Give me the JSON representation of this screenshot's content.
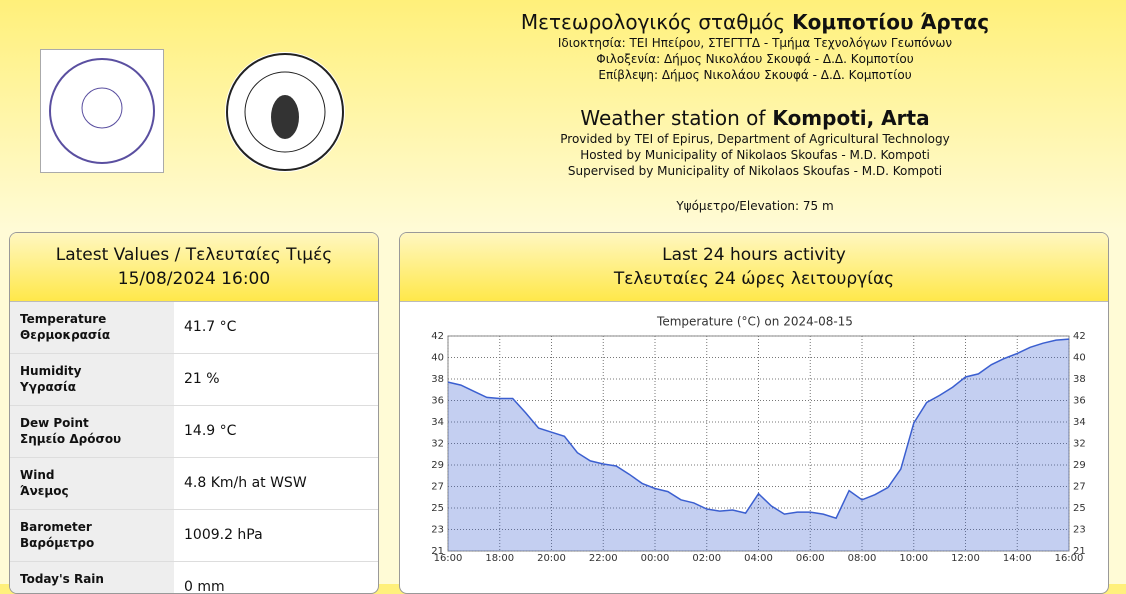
{
  "header": {
    "title_gr_prefix": "Μετεωρολογικός σταθμός",
    "title_gr_bold": "Κομποτίου Άρτας",
    "lines_gr": [
      "Ιδιοκτησία: ΤΕΙ Ηπείρου, ΣΤΕΓΤΤΔ - Τμήμα Τεχνολόγων Γεωπόνων",
      "Φιλοξενία: Δήμος Νικολάου Σκουφά - Δ.Δ. Κομποτίου",
      "Επίβλεψη: Δήμος Νικολάου Σκουφά - Δ.Δ. Κομποτίου"
    ],
    "title_en_prefix": "Weather station of",
    "title_en_bold": "Kompoti, Arta",
    "lines_en": [
      "Provided by TEI of Epirus, Department of Agricultural Technology",
      "Hosted by Municipality of Nikolaos Skoufas - M.D. Kompoti",
      "Supervised by Municipality of Nikolaos Skoufas - M.D. Kompoti"
    ],
    "elevation": "Υψόμετρο/Elevation: 75 m"
  },
  "latest": {
    "title": "Latest Values / Τελευταίες Τιμές",
    "datetime": "15/08/2024 16:00",
    "rows": [
      {
        "label_en": "Temperature",
        "label_gr": "Θερμοκρασία",
        "value": "41.7 °C"
      },
      {
        "label_en": "Humidity",
        "label_gr": "Υγρασία",
        "value": "21 %"
      },
      {
        "label_en": "Dew Point",
        "label_gr": "Σημείο Δρόσου",
        "value": "14.9 °C"
      },
      {
        "label_en": "Wind",
        "label_gr": "Άνεμος",
        "value": "4.8 Km/h at WSW"
      },
      {
        "label_en": "Barometer",
        "label_gr": "Βαρόμετρο",
        "value": "1009.2 hPa"
      },
      {
        "label_en": "Today's Rain",
        "value": "0 mm"
      }
    ]
  },
  "activity": {
    "title_en": "Last 24 hours activity",
    "title_gr": "Τελευταίες 24 ώρες λειτουργίας",
    "chart": {
      "type": "line",
      "title": "Temperature (°C) on 2024-08-15",
      "color": "#3b5fd0",
      "grid": true,
      "x": [
        0,
        0.5,
        1,
        1.5,
        2,
        2.5,
        3,
        3.5,
        4,
        4.5,
        5,
        5.5,
        6,
        6.5,
        7,
        7.5,
        8,
        8.5,
        9,
        9.5,
        10,
        10.5,
        11,
        11.5,
        12,
        12.5,
        13,
        13.5,
        14,
        14.5,
        15,
        15.5,
        16,
        16.5,
        17,
        17.5,
        18,
        18.5,
        19,
        19.5,
        20,
        20.5,
        21,
        21.5,
        22,
        22.5,
        23,
        23.5,
        24
      ],
      "values": [
        37.5,
        37.2,
        36.6,
        36.0,
        35.9,
        35.9,
        34.5,
        33.0,
        32.6,
        32.2,
        30.6,
        29.8,
        29.5,
        29.3,
        28.5,
        27.6,
        27.1,
        26.8,
        26.0,
        25.7,
        25.1,
        24.9,
        25.0,
        24.7,
        26.6,
        25.4,
        24.6,
        24.8,
        24.8,
        24.6,
        24.2,
        26.9,
        26.0,
        26.5,
        27.2,
        29.0,
        33.5,
        35.5,
        36.2,
        37.0,
        38.0,
        38.3,
        39.2,
        39.8,
        40.3,
        40.9,
        41.3,
        41.6,
        41.7
      ],
      "xlim": [
        0,
        24
      ],
      "xticks": [
        {
          "value": 0,
          "label": "16:00"
        },
        {
          "value": 2,
          "label": "18:00"
        },
        {
          "value": 4,
          "label": "20:00"
        },
        {
          "value": 6,
          "label": "22:00"
        },
        {
          "value": 8,
          "label": "00:00"
        },
        {
          "value": 10,
          "label": "02:00"
        },
        {
          "value": 12,
          "label": "04:00"
        },
        {
          "value": 14,
          "label": "06:00"
        },
        {
          "value": 16,
          "label": "08:00"
        },
        {
          "value": 18,
          "label": "10:00"
        },
        {
          "value": 20,
          "label": "12:00"
        },
        {
          "value": 22,
          "label": "14:00"
        },
        {
          "value": 24,
          "label": "16:00"
        }
      ],
      "ylim": [
        21,
        42
      ],
      "yticks": [
        21,
        {
          "value": 23.1,
          "label": "23"
        },
        {
          "value": 25.2,
          "label": "25"
        },
        {
          "value": 27.3,
          "label": "27"
        },
        {
          "value": 29.4,
          "label": "29"
        },
        {
          "value": 31.5,
          "label": "32"
        },
        {
          "value": 33.6,
          "label": "34"
        },
        {
          "value": 35.7,
          "label": "36"
        },
        {
          "value": 37.8,
          "label": "38"
        },
        {
          "value": 39.9,
          "label": "40"
        },
        42
      ]
    }
  }
}
